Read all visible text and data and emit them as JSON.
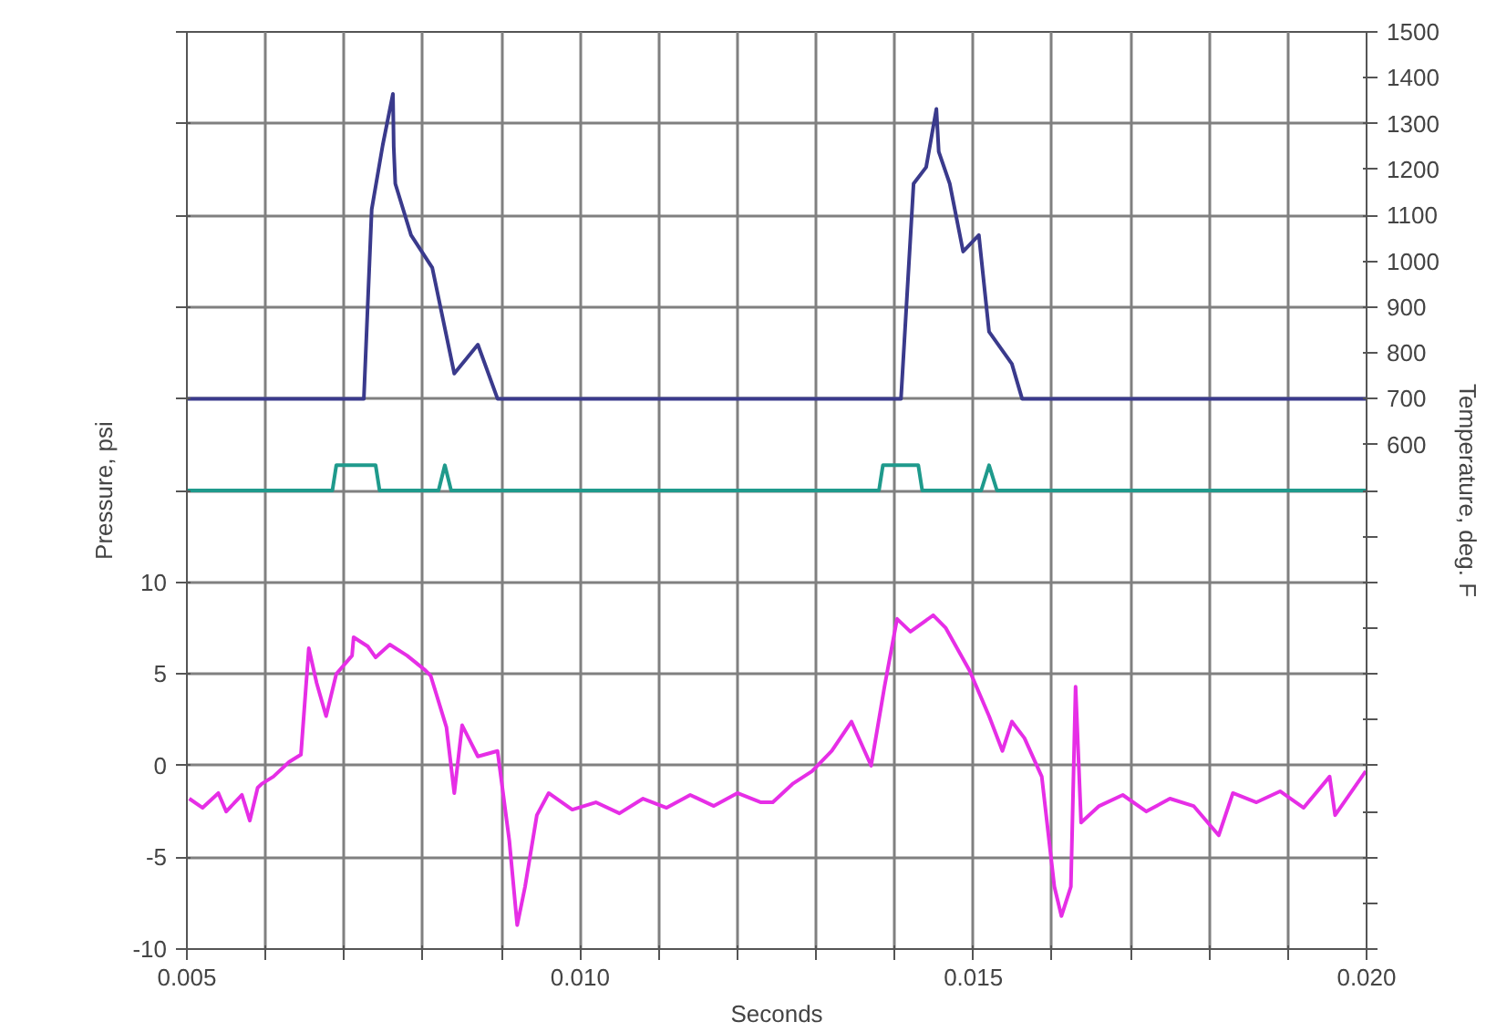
{
  "chart_data": {
    "type": "line",
    "xlabel": "Seconds",
    "ylabel": "Pressure, psi",
    "y2label": "Temperature, deg. F",
    "xlim": [
      0.005,
      0.02
    ],
    "xticks": [
      0.005,
      {
        "value": 0.006,
        "label": null
      },
      {
        "value": 0.007,
        "label": null
      },
      {
        "value": 0.008,
        "label": null
      },
      {
        "value": 0.009,
        "label": null
      },
      {
        "value": 0.01,
        "label": "0.010"
      },
      {
        "value": 0.011,
        "label": null
      },
      {
        "value": 0.012,
        "label": null
      },
      {
        "value": 0.013,
        "label": null
      },
      {
        "value": 0.014,
        "label": null
      },
      {
        "value": 0.015,
        "label": "0.015"
      },
      {
        "value": 0.016,
        "label": null
      },
      {
        "value": 0.017,
        "label": null
      },
      {
        "value": 0.018,
        "label": null
      },
      {
        "value": 0.019,
        "label": null
      },
      {
        "value": 0.02,
        "label": "0.020"
      }
    ],
    "ylim": [
      -10,
      40
    ],
    "yticks": [
      -10,
      -5,
      0,
      5,
      10,
      {
        "value": 15,
        "label": null
      },
      {
        "value": 20,
        "label": null
      },
      {
        "value": 25,
        "label": null
      },
      {
        "value": 30,
        "label": null
      },
      {
        "value": 35,
        "label": null
      },
      {
        "value": 40,
        "label": null
      }
    ],
    "y2lim": [
      -500,
      1500
    ],
    "y2ticks": [
      {
        "value": -500,
        "label": null
      },
      {
        "value": -400,
        "label": null
      },
      {
        "value": -300,
        "label": null
      },
      {
        "value": -200,
        "label": null
      },
      {
        "value": -100,
        "label": null
      },
      {
        "value": 0,
        "label": null
      },
      {
        "value": 100,
        "label": null
      },
      {
        "value": 200,
        "label": null
      },
      {
        "value": 300,
        "label": null
      },
      {
        "value": 400,
        "label": null
      },
      {
        "value": 500,
        "label": null
      },
      600,
      700,
      800,
      900,
      1000,
      1100,
      1200,
      1300,
      1400,
      1500
    ],
    "grid": true,
    "line_style": "solid",
    "series": [
      {
        "axis": "y2",
        "color": "#3a3a8c",
        "x": [
          0.005,
          0.0072,
          0.00725,
          0.00735,
          0.00749,
          0.00762,
          0.00763,
          0.00765,
          0.00785,
          0.00812,
          0.0084,
          0.0087,
          0.00895,
          0.01408,
          0.01424,
          0.0144,
          0.01453,
          0.01456,
          0.0147,
          0.01487,
          0.01507,
          0.0152,
          0.01549,
          0.01562,
          0.02
        ],
        "values": [
          700,
          700,
          700,
          1113,
          1253,
          1365,
          1250,
          1169,
          1057,
          986,
          755,
          818,
          700,
          700,
          1169,
          1205,
          1332,
          1239,
          1169,
          1021,
          1057,
          846,
          776,
          700,
          700
        ]
      },
      {
        "axis": "y2",
        "color": "#1f9a8c",
        "x": [
          0.005,
          0.00685,
          0.0069,
          0.0074,
          0.00745,
          0.0082,
          0.00828,
          0.00836,
          0.0138,
          0.01385,
          0.0143,
          0.01435,
          0.0151,
          0.0152,
          0.0153,
          0.02
        ],
        "values": [
          500,
          500,
          555,
          555,
          500,
          500,
          555,
          500,
          500,
          555,
          555,
          500,
          500,
          555,
          500,
          500
        ]
      },
      {
        "axis": "y",
        "color": "#e62ee6",
        "x": [
          0.00503,
          0.0052,
          0.0054,
          0.0055,
          0.0057,
          0.0058,
          0.0059,
          0.00595,
          0.0061,
          0.0063,
          0.00645,
          0.00655,
          0.00665,
          0.00677,
          0.0069,
          0.0071,
          0.00712,
          0.0073,
          0.0074,
          0.00758,
          0.0078,
          0.00803,
          0.0081,
          0.0083,
          0.0084,
          0.0085,
          0.0087,
          0.00895,
          0.0091,
          0.0092,
          0.0093,
          0.00945,
          0.0096,
          0.0099,
          0.0102,
          0.0105,
          0.0108,
          0.0111,
          0.0114,
          0.0117,
          0.012,
          0.0123,
          0.01245,
          0.0127,
          0.01295,
          0.0132,
          0.01345,
          0.0137,
          0.01387,
          0.01403,
          0.0142,
          0.01449,
          0.01465,
          0.01495,
          0.0152,
          0.01537,
          0.01549,
          0.01565,
          0.01587,
          0.01603,
          0.01612,
          0.01624,
          0.0163,
          0.01637,
          0.0166,
          0.0169,
          0.0172,
          0.0175,
          0.0178,
          0.01812,
          0.0183,
          0.0186,
          0.0189,
          0.0192,
          0.01953,
          0.0196,
          0.01999
        ],
        "values": [
          -1.8,
          -2.3,
          -1.5,
          -2.5,
          -1.6,
          -3.0,
          -1.2,
          -1.0,
          -0.6,
          0.2,
          0.6,
          6.4,
          4.5,
          2.7,
          5.0,
          6.0,
          7.0,
          6.5,
          5.9,
          6.6,
          6.0,
          5.2,
          4.9,
          2.1,
          -1.5,
          2.2,
          0.5,
          0.8,
          -4.1,
          -8.7,
          -6.6,
          -2.7,
          -1.5,
          -2.4,
          -2.0,
          -2.6,
          -1.8,
          -2.3,
          -1.6,
          -2.2,
          -1.5,
          -2.0,
          -2.0,
          -1.0,
          -0.3,
          0.8,
          2.4,
          0.0,
          4.3,
          8.0,
          7.3,
          8.2,
          7.5,
          5.2,
          2.7,
          0.8,
          2.4,
          1.5,
          -0.6,
          -6.6,
          -8.2,
          -6.6,
          4.3,
          -3.1,
          -2.2,
          -1.6,
          -2.5,
          -1.8,
          -2.2,
          -3.8,
          -1.5,
          -2.0,
          -1.4,
          -2.3,
          -0.6,
          -2.7,
          -0.3
        ]
      }
    ]
  }
}
